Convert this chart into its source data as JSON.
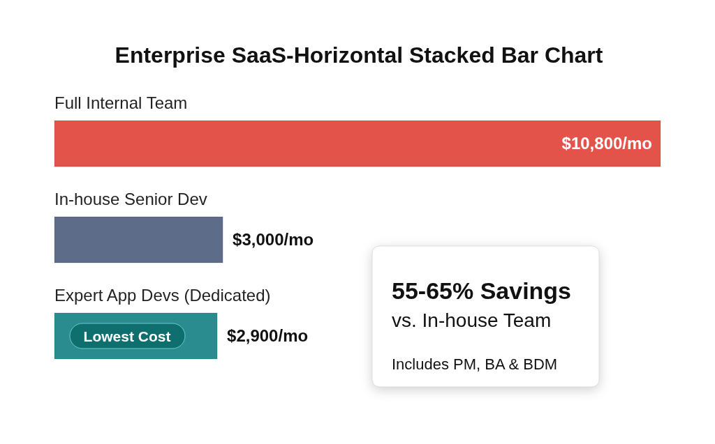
{
  "chart_data": {
    "type": "bar",
    "orientation": "horizontal",
    "title": "Enterprise SaaS-Horizontal Stacked Bar Chart",
    "categories": [
      "Full Internal Team",
      "In-house Senior Dev",
      "Expert App Devs (Dedicated)"
    ],
    "values": [
      10800,
      3000,
      2900
    ],
    "colors": [
      "#e4534a",
      "#5d6c88",
      "#2a8c8e"
    ],
    "value_labels": [
      "$10,800/mo",
      "$3,000/mo",
      "$2,900/mo"
    ],
    "annotations": [
      "Lowest Cost",
      "55-65% Savings",
      "vs. In-house Team",
      "Includes PM, BA & BDM"
    ]
  }
}
